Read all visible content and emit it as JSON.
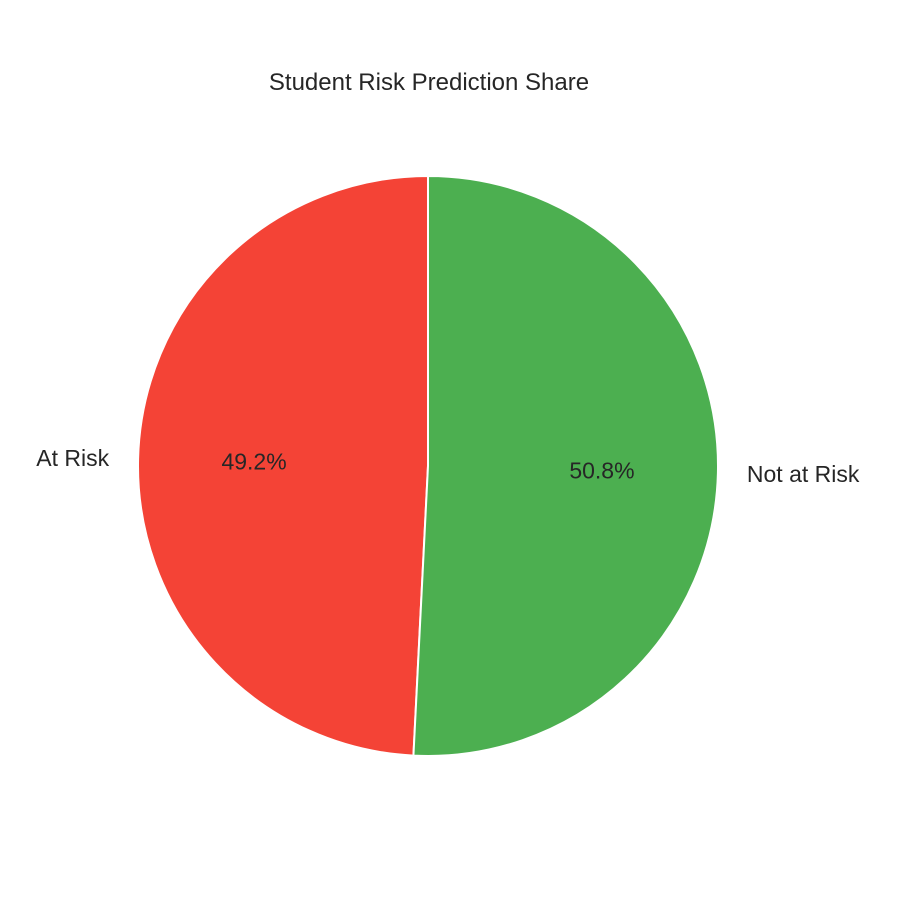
{
  "chart_data": {
    "type": "pie",
    "title": "Student Risk Prediction Share",
    "slices": [
      {
        "label": "At Risk",
        "value": 49.2,
        "pct_label": "49.2%",
        "color": "#F44336"
      },
      {
        "label": "Not at Risk",
        "value": 50.8,
        "pct_label": "50.8%",
        "color": "#4CAF50"
      }
    ],
    "start_angle_deg": 90,
    "direction": "counterclockwise",
    "legend": "none"
  }
}
